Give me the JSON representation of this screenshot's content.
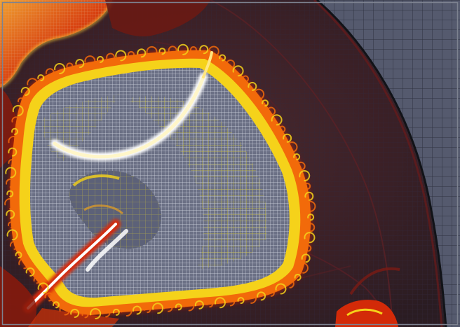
{
  "image": {
    "kind": "adaptive-mesh-refinement-simulation-render",
    "description_icon": "amr-fluid-instability-field"
  },
  "colors": {
    "background_mesh": "#555a6e",
    "coarse_grid_line": "#2b2f3c",
    "dark_red": "#3a0c0c",
    "mid_red": "#8b1a0c",
    "bright_red": "#d32a08",
    "orange": "#f26a0a",
    "yellow": "#f5d21a",
    "pale_yellow": "#fff4a6",
    "white_core": "#ffffff",
    "fine_grid_line": "#e8ecf5",
    "refined_yellow_grid": "#d6c840",
    "frame": "#7d8290"
  }
}
